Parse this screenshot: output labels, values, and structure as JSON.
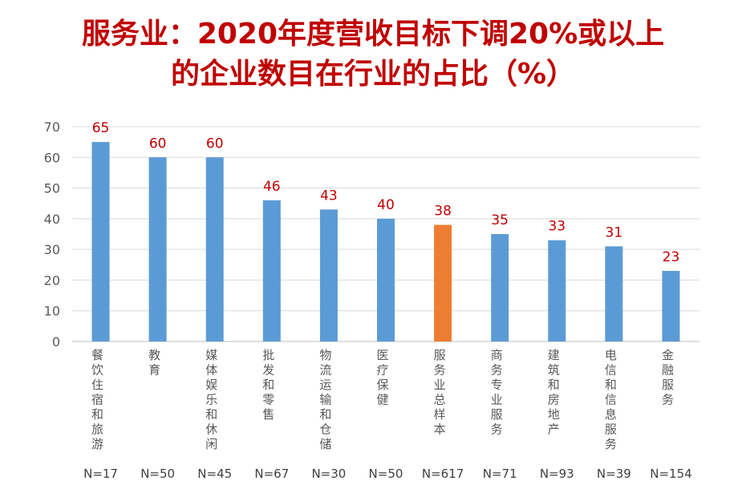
{
  "chart_data": {
    "type": "bar",
    "title_lines": [
      "服务业：2020年度营收目标下调20%或以上",
      "的企业数目在行业的占比（%）"
    ],
    "categories": [
      "餐饮住宿和旅游",
      "教育",
      "媒体娱乐和休闲",
      "批发和零售",
      "物流运输和仓储",
      "医疗保健",
      "服务业总样本",
      "商务专业服务",
      "建筑和房地产",
      "电信和信息服务",
      "金融服务"
    ],
    "values": [
      65,
      60,
      60,
      46,
      43,
      40,
      38,
      35,
      33,
      31,
      23
    ],
    "sample_sizes": [
      "N=17",
      "N=50",
      "N=45",
      "N=67",
      "N=30",
      "N=50",
      "N=617",
      "N=71",
      "N=93",
      "N=39",
      "N=154"
    ],
    "highlight_index": 6,
    "ylim": [
      0,
      70
    ],
    "yticks": [
      0,
      10,
      20,
      30,
      40,
      50,
      60,
      70
    ],
    "grid": true,
    "legend": "none",
    "colors": {
      "bar": "#5b9bd5",
      "highlight": "#ed7d31",
      "title": "#c00000",
      "data_label": "#c00000",
      "grid": "#d9d9d9"
    }
  }
}
